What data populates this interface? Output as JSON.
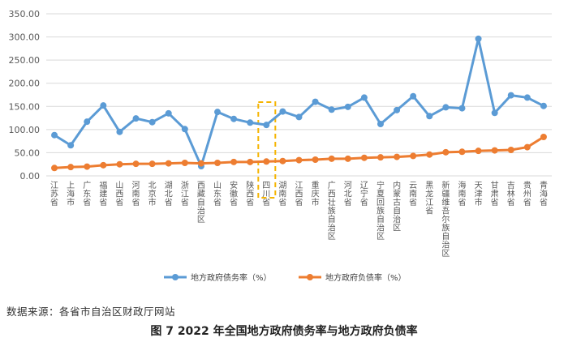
{
  "chart_data": {
    "type": "line",
    "categories": [
      "江苏省",
      "上海市",
      "广东省",
      "福建省",
      "山西省",
      "河南省",
      "北京市",
      "湖北省",
      "浙江省",
      "西藏自治区",
      "山东省",
      "安徽省",
      "陕西省",
      "四川省",
      "湖南省",
      "江西省",
      "重庆市",
      "广西壮族自治区",
      "河北省",
      "辽宁省",
      "宁夏回族自治区",
      "内蒙古自治区",
      "云南省",
      "黑龙江省",
      "新疆维吾尔族自治区",
      "海南省",
      "天津市",
      "甘肃省",
      "吉林省",
      "贵州省",
      "青海省"
    ],
    "series": [
      {
        "name": "地方政府债务率（%）",
        "color": "#5B9BD5",
        "values": [
          88,
          66,
          117,
          152,
          95,
          124,
          116,
          135,
          101,
          21,
          138,
          123,
          115,
          110,
          139,
          127,
          160,
          143,
          149,
          169,
          112,
          142,
          172,
          129,
          148,
          146,
          296,
          136,
          174,
          169,
          151
        ]
      },
      {
        "name": "地方政府负债率（%）",
        "color": "#ED7D31",
        "values": [
          17,
          19,
          20,
          23,
          25,
          26,
          26,
          27,
          28,
          27,
          28,
          30,
          30,
          31,
          32,
          34,
          35,
          37,
          37,
          39,
          40,
          41,
          43,
          46,
          51,
          52,
          54,
          55,
          56,
          62,
          84
        ]
      }
    ],
    "ylim": [
      0,
      350
    ],
    "yticks": [
      "0.00",
      "50.00",
      "100.00",
      "150.00",
      "200.00",
      "250.00",
      "300.00",
      "350.00"
    ],
    "grid": true,
    "legend_position": "bottom",
    "highlight_category": "四川省",
    "highlight_color": "#F5B400"
  },
  "source_text": "数据来源：各省市自治区财政厅网站",
  "caption": "图 7    2022 年全国地方政府债务率与地方政府负债率"
}
